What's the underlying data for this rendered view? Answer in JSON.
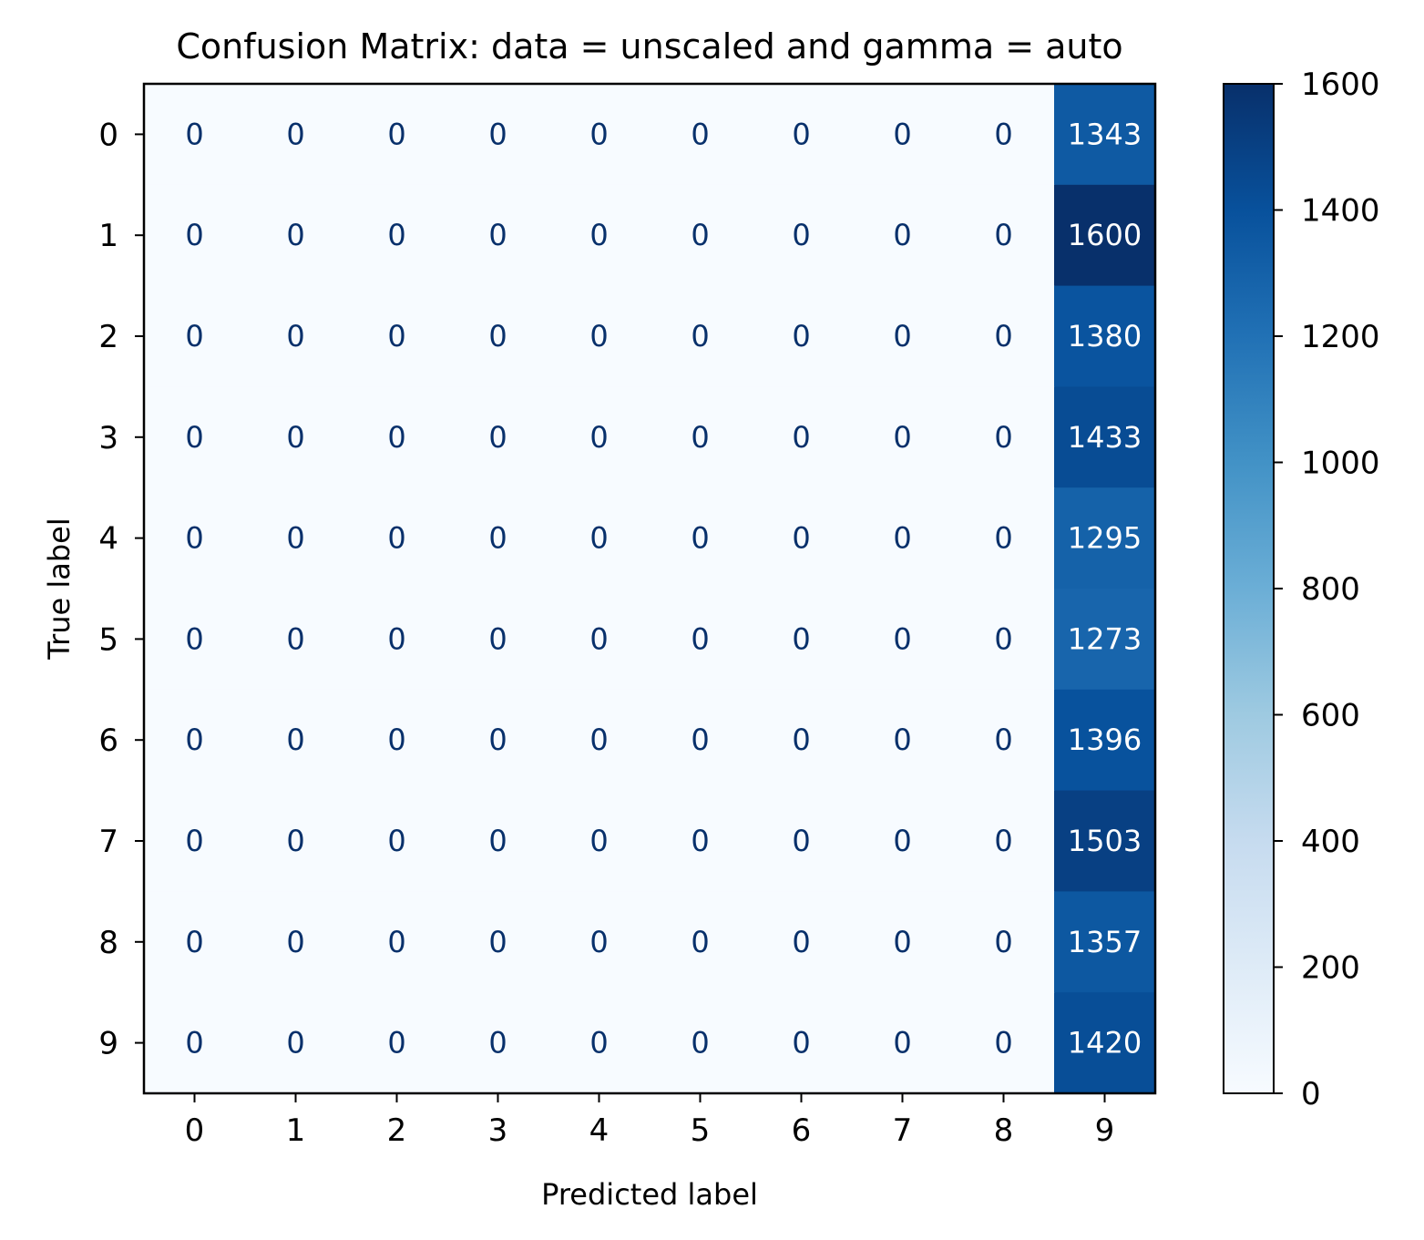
{
  "chart_data": {
    "type": "heatmap",
    "title": "Confusion Matrix: data = unscaled and gamma = auto",
    "xlabel": "Predicted label",
    "ylabel": "True label",
    "x_categories": [
      "0",
      "1",
      "2",
      "3",
      "4",
      "5",
      "6",
      "7",
      "8",
      "9"
    ],
    "y_categories": [
      "0",
      "1",
      "2",
      "3",
      "4",
      "5",
      "6",
      "7",
      "8",
      "9"
    ],
    "matrix": [
      [
        0,
        0,
        0,
        0,
        0,
        0,
        0,
        0,
        0,
        1343
      ],
      [
        0,
        0,
        0,
        0,
        0,
        0,
        0,
        0,
        0,
        1600
      ],
      [
        0,
        0,
        0,
        0,
        0,
        0,
        0,
        0,
        0,
        1380
      ],
      [
        0,
        0,
        0,
        0,
        0,
        0,
        0,
        0,
        0,
        1433
      ],
      [
        0,
        0,
        0,
        0,
        0,
        0,
        0,
        0,
        0,
        1295
      ],
      [
        0,
        0,
        0,
        0,
        0,
        0,
        0,
        0,
        0,
        1273
      ],
      [
        0,
        0,
        0,
        0,
        0,
        0,
        0,
        0,
        0,
        1396
      ],
      [
        0,
        0,
        0,
        0,
        0,
        0,
        0,
        0,
        0,
        1503
      ],
      [
        0,
        0,
        0,
        0,
        0,
        0,
        0,
        0,
        0,
        1357
      ],
      [
        0,
        0,
        0,
        0,
        0,
        0,
        0,
        0,
        0,
        1420
      ]
    ],
    "colormap": "Blues",
    "colorbar": {
      "range": [
        0,
        1600
      ],
      "ticks": [
        0,
        200,
        400,
        600,
        800,
        1000,
        1200,
        1400,
        1600
      ]
    },
    "text_colors": {
      "light_cell": "#08306b",
      "dark_cell": "#ffffff"
    }
  }
}
